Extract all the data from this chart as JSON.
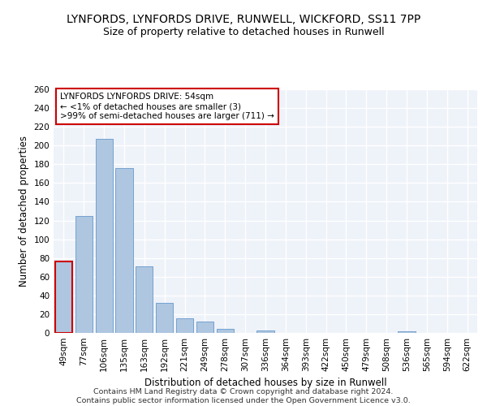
{
  "title": "LYNFORDS, LYNFORDS DRIVE, RUNWELL, WICKFORD, SS11 7PP",
  "subtitle": "Size of property relative to detached houses in Runwell",
  "xlabel": "Distribution of detached houses by size in Runwell",
  "ylabel": "Number of detached properties",
  "categories": [
    "49sqm",
    "77sqm",
    "106sqm",
    "135sqm",
    "163sqm",
    "192sqm",
    "221sqm",
    "249sqm",
    "278sqm",
    "307sqm",
    "336sqm",
    "364sqm",
    "393sqm",
    "422sqm",
    "450sqm",
    "479sqm",
    "508sqm",
    "536sqm",
    "565sqm",
    "594sqm",
    "622sqm"
  ],
  "values": [
    76,
    125,
    207,
    176,
    71,
    32,
    16,
    12,
    4,
    0,
    3,
    0,
    0,
    0,
    0,
    0,
    0,
    2,
    0,
    0,
    0
  ],
  "bar_color": "#aec6e0",
  "bar_edge_color": "#6699cc",
  "highlight_color": "#cc0000",
  "highlight_index": 0,
  "annotation_box_text": "LYNFORDS LYNFORDS DRIVE: 54sqm\n← <1% of detached houses are smaller (3)\n>99% of semi-detached houses are larger (711) →",
  "ylim": [
    0,
    260
  ],
  "yticks": [
    0,
    20,
    40,
    60,
    80,
    100,
    120,
    140,
    160,
    180,
    200,
    220,
    240,
    260
  ],
  "footer_line1": "Contains HM Land Registry data © Crown copyright and database right 2024.",
  "footer_line2": "Contains public sector information licensed under the Open Government Licence v3.0.",
  "background_color": "#eef2f9",
  "grid_color": "#ffffff",
  "title_fontsize": 10,
  "subtitle_fontsize": 9,
  "axis_label_fontsize": 8.5,
  "tick_fontsize": 7.5,
  "annotation_fontsize": 7.5,
  "footer_fontsize": 6.8
}
